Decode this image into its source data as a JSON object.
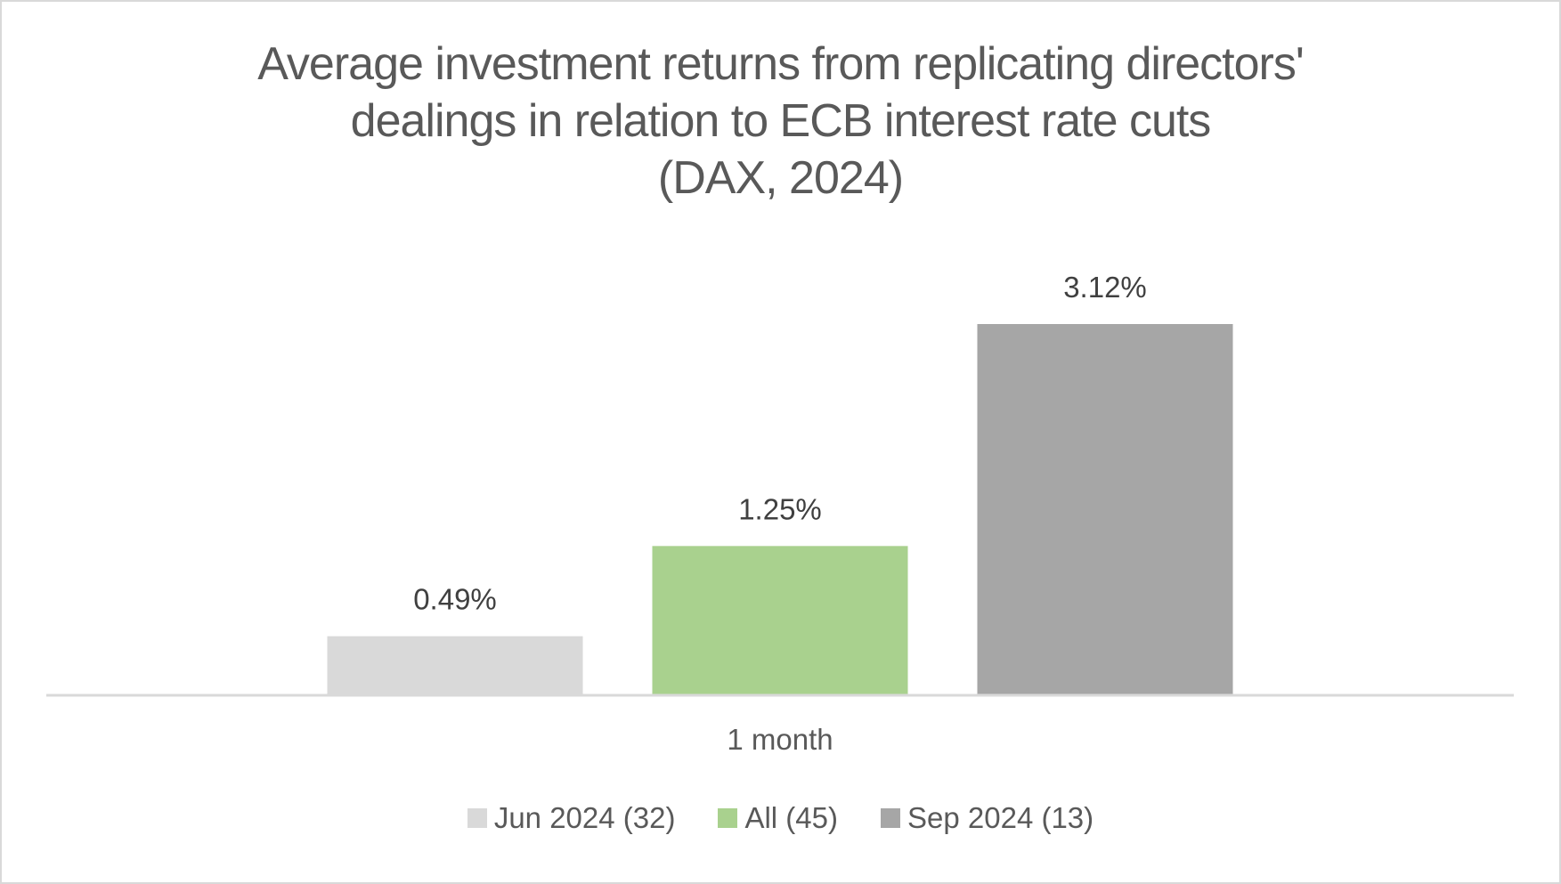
{
  "chart_data": {
    "type": "bar",
    "title_lines": [
      "Average investment returns from replicating directors'",
      "dealings in relation to ECB interest rate cuts",
      "(DAX, 2024)"
    ],
    "title": "Average investment returns from replicating directors' dealings in relation to ECB interest rate cuts (DAX, 2024)",
    "categories": [
      "1 month"
    ],
    "series": [
      {
        "name": "Jun 2024 (32)",
        "values": [
          0.49
        ],
        "label": "0.49%",
        "color": "#d9d9d9"
      },
      {
        "name": "All (45)",
        "values": [
          1.25
        ],
        "label": "1.25%",
        "color": "#a9d18e"
      },
      {
        "name": "Sep 2024 (13)",
        "values": [
          3.12
        ],
        "label": "3.12%",
        "color": "#a6a6a6"
      }
    ],
    "xlabel": "",
    "ylabel": "",
    "ylim": [
      0,
      3.6
    ],
    "value_unit": "%",
    "grid": false,
    "legend_position": "bottom",
    "axis_color": "#d9d9d9"
  }
}
